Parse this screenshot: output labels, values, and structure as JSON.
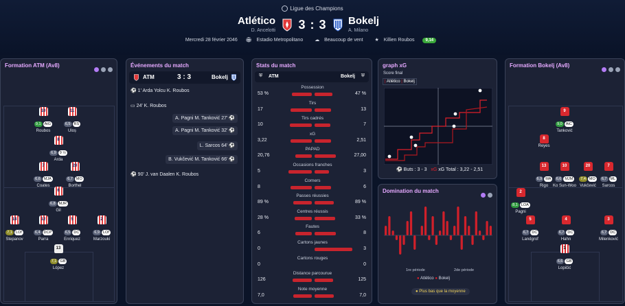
{
  "header": {
    "competition": "Ligue des Champions",
    "home_team": "Atlético",
    "away_team": "Bokelj",
    "home_coach": "D. Ancelotti",
    "away_coach": "A. Milano",
    "score": "3 : 3",
    "date": "Mercredi 28 février 2046",
    "stadium": "Estadio Metropolitano",
    "weather": "Beaucoup de vent",
    "motm_name": "Killien Roubos",
    "motm_rating": "9,14"
  },
  "left_formation": {
    "title": "Formation ATM (Av8)",
    "players": [
      {
        "num": "10",
        "rating": "9,1",
        "rclass": "g",
        "pos": "AtG",
        "name": "Roubos"
      },
      {
        "num": "11",
        "rating": "6,5",
        "rclass": "",
        "pos": "RS",
        "name": "Uloș"
      },
      {
        "num": "8",
        "rating": "6,9",
        "rclass": "",
        "pos": "9 ½",
        "name": "Arda"
      },
      {
        "num": "7",
        "rating": "6,6",
        "rclass": "",
        "pos": "MJA",
        "name": "Coates"
      },
      {
        "num": "20",
        "rating": "6,7",
        "rclass": "",
        "pos": "MO",
        "name": "Borthel"
      },
      {
        "num": "6",
        "rating": "6,8",
        "rclass": "",
        "pos": "MJR",
        "name": "Gil"
      },
      {
        "num": "18",
        "rating": "7,1",
        "rclass": "y",
        "pos": "LOf",
        "name": "Stepanov"
      },
      {
        "num": "12",
        "rating": "6,4",
        "rclass": "",
        "pos": "DCP",
        "name": "Parra"
      },
      {
        "num": "5",
        "rating": "6,5",
        "rclass": "",
        "pos": "DC",
        "name": "Enriquez"
      },
      {
        "num": "2",
        "rating": "6,9",
        "rclass": "",
        "pos": "LOf",
        "name": "Marzouki"
      },
      {
        "num": "13",
        "rating": "7,1",
        "rclass": "y",
        "pos": "GB",
        "name": "López"
      }
    ]
  },
  "events": {
    "title": "Événements du match",
    "home_abbr": "ATM",
    "away_abbr": "Bokelj",
    "score": "3 : 3",
    "items": [
      {
        "side": "l",
        "text": "1' Arda Yolcu K. Roubos"
      },
      {
        "side": "l",
        "text": "24' K. Roubos"
      },
      {
        "side": "r",
        "text": "A. Pagni M. Tanković 27'"
      },
      {
        "side": "r",
        "text": "A. Pagni M. Tanković 32'"
      },
      {
        "side": "r",
        "text": "L. Sarcos 64'"
      },
      {
        "side": "r",
        "text": "B. Vukčević M. Tanković 66'"
      },
      {
        "side": "l",
        "text": "90' J. van Daalen K. Roubos"
      }
    ]
  },
  "stats": {
    "title": "Stats du match",
    "home_abbr": "ATM",
    "away_abbr": "Bokelj",
    "rows": [
      {
        "label": "Possession",
        "home": "53 %",
        "away": "47 %",
        "hv": 53,
        "av": 47
      },
      {
        "label": "Tirs",
        "home": "17",
        "away": "13",
        "hv": 17,
        "av": 13
      },
      {
        "label": "Tirs cadrés",
        "home": "10",
        "away": "7",
        "hv": 10,
        "av": 7
      },
      {
        "label": "xG",
        "home": "3,22",
        "away": "2,51",
        "hv": 3.22,
        "av": 2.51
      },
      {
        "label": "PAPAD",
        "home": "20,76",
        "away": "27,00",
        "hv": 20.76,
        "av": 27.0
      },
      {
        "label": "Occasions franches",
        "home": "5",
        "away": "3",
        "hv": 5,
        "av": 3
      },
      {
        "label": "Corners",
        "home": "8",
        "away": "6",
        "hv": 8,
        "av": 6
      },
      {
        "label": "Passes réussies",
        "home": "89 %",
        "away": "89 %",
        "hv": 89,
        "av": 89
      },
      {
        "label": "Centres réussis",
        "home": "28 %",
        "away": "33 %",
        "hv": 28,
        "av": 33
      },
      {
        "label": "Fautes",
        "home": "6",
        "away": "8",
        "hv": 6,
        "av": 8
      },
      {
        "label": "Cartons jaunes",
        "home": "0",
        "away": "3",
        "hv": 0,
        "av": 3
      },
      {
        "label": "Cartons rouges",
        "home": "0",
        "away": "0",
        "hv": 0,
        "av": 0
      },
      {
        "label": "Distance parcourue",
        "home": "126",
        "away": "125",
        "hv": 126,
        "av": 125
      },
      {
        "label": "Note moyenne",
        "home": "7,0",
        "away": "7,0",
        "hv": 7,
        "av": 7
      }
    ]
  },
  "xg": {
    "title": "graph xG",
    "subtitle": "Score final",
    "home": "Atlético",
    "away": "Bokelj",
    "buts": "Buts : 3 - 3",
    "xg_total": "xG Total : 3,22 - 2,51",
    "home_color": "#e0202a",
    "away_color": "#e0202a"
  },
  "domination": {
    "title": "Domination du match",
    "first_half": "1re période",
    "second_half": "2de période",
    "legend_home": "Atlético",
    "legend_away": "Bokelj",
    "footer": "Plus bas que la moyenne",
    "values": [
      2,
      4,
      1,
      -1,
      -4,
      -2,
      3,
      5,
      -3,
      0,
      2,
      6,
      -1,
      4,
      -2,
      1,
      5,
      3,
      -1,
      2,
      6,
      -3,
      4,
      2,
      -2,
      5,
      1,
      -1,
      3,
      2
    ]
  },
  "right_formation": {
    "title": "Formation Bokelj (Av8)",
    "players": [
      {
        "num": "9",
        "rating": "9,0",
        "rclass": "g",
        "pos": "AtC",
        "name": "Tanković"
      },
      {
        "num": "8",
        "rating": "",
        "rclass": "",
        "pos": "",
        "name": "Reyes"
      },
      {
        "num": "13",
        "rating": "6,9",
        "rclass": "",
        "pos": "MA",
        "name": "Rigo"
      },
      {
        "num": "10",
        "rating": "6,6",
        "rclass": "",
        "pos": "MJM",
        "name": "Ko Sun-Woo"
      },
      {
        "num": "20",
        "rating": "7,4",
        "rclass": "y",
        "pos": "MO",
        "name": "Vukčević"
      },
      {
        "num": "7",
        "rating": "6,7",
        "rclass": "",
        "pos": "ML",
        "name": "Sarcos"
      },
      {
        "num": "2",
        "rating": "8,1",
        "rclass": "g",
        "pos": "LOA",
        "name": "Pagni"
      },
      {
        "num": "5",
        "rating": "6,7",
        "rclass": "",
        "pos": "DC",
        "name": "Landgrof"
      },
      {
        "num": "4",
        "rating": "6,7",
        "rclass": "",
        "pos": "DC",
        "name": "Hahn"
      },
      {
        "num": "3",
        "rating": "6,7",
        "rclass": "",
        "pos": "DC",
        "name": "Milenković"
      },
      {
        "num": "1",
        "rating": "6,6",
        "rclass": "",
        "pos": "GB",
        "name": "Lopičić"
      }
    ]
  }
}
